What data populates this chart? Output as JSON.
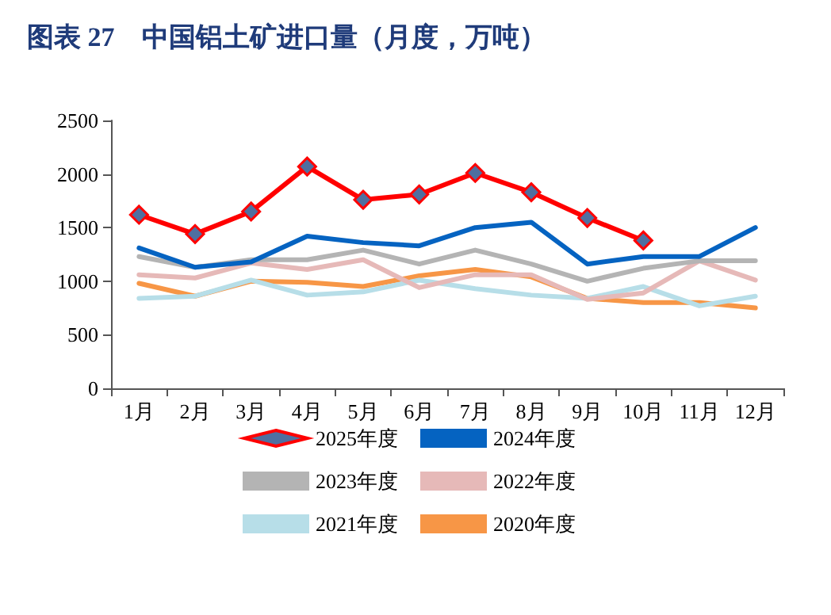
{
  "chart_data": {
    "type": "line",
    "title": "图表 27　中国铝土矿进口量（月度，万吨）",
    "categories": [
      "1月",
      "2月",
      "3月",
      "4月",
      "5月",
      "6月",
      "7月",
      "8月",
      "9月",
      "10月",
      "11月",
      "12月"
    ],
    "series": [
      {
        "name": "2025年度",
        "color": "#ff0000",
        "marker": "diamond",
        "values": [
          1620,
          1440,
          1650,
          2070,
          1760,
          1810,
          2010,
          1830,
          1590,
          1380,
          null,
          null
        ]
      },
      {
        "name": "2024年度",
        "color": "#0563c1",
        "values": [
          1310,
          1130,
          1180,
          1420,
          1360,
          1330,
          1500,
          1550,
          1160,
          1230,
          1230,
          1500
        ]
      },
      {
        "name": "2023年度",
        "color": "#b4b4b4",
        "values": [
          1230,
          1130,
          1200,
          1200,
          1290,
          1160,
          1290,
          1160,
          1000,
          1120,
          1190,
          1190
        ]
      },
      {
        "name": "2022年度",
        "color": "#e6b9b8",
        "values": [
          1060,
          1030,
          1170,
          1110,
          1200,
          940,
          1060,
          1060,
          830,
          890,
          1190,
          1010
        ]
      },
      {
        "name": "2021年度",
        "color": "#b7dee8",
        "values": [
          840,
          860,
          1010,
          870,
          900,
          1010,
          930,
          870,
          840,
          950,
          770,
          860
        ]
      },
      {
        "name": "2020年度",
        "color": "#f79646",
        "values": [
          980,
          860,
          1000,
          990,
          950,
          1050,
          1110,
          1040,
          840,
          800,
          800,
          750
        ]
      }
    ],
    "ylim": [
      0,
      2500
    ],
    "yticks": [
      0,
      500,
      1000,
      1500,
      2000,
      2500
    ],
    "grid": false,
    "legend": "bottom",
    "marker": "none",
    "line_style": "solid"
  }
}
